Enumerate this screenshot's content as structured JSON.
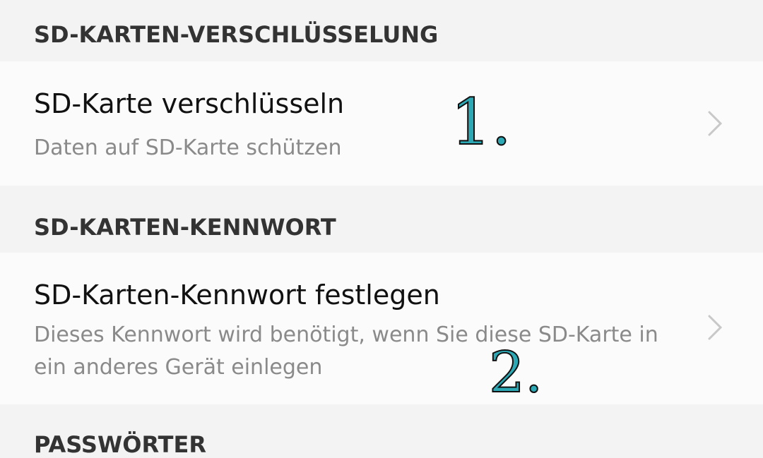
{
  "sections": [
    {
      "header": "SD-KARTEN-VERSCHLÜSSELUNG",
      "item": {
        "title": "SD-Karte verschlüsseln",
        "subtitle": "Daten auf SD-Karte schützen",
        "annotation": "1."
      }
    },
    {
      "header": "SD-KARTEN-KENNWORT",
      "item": {
        "title": "SD-Karten-Kennwort festlegen",
        "subtitle": "Dieses Kennwort wird benötigt, wenn Sie diese SD-Karte in ein anderes Gerät einlegen",
        "annotation": "2."
      }
    },
    {
      "header": "PASSWÖRTER"
    }
  ],
  "colors": {
    "annotation": "#2ca9b4",
    "chevron": "#c8c8c8"
  },
  "icons": {
    "chevron": "chevron-right-icon"
  }
}
